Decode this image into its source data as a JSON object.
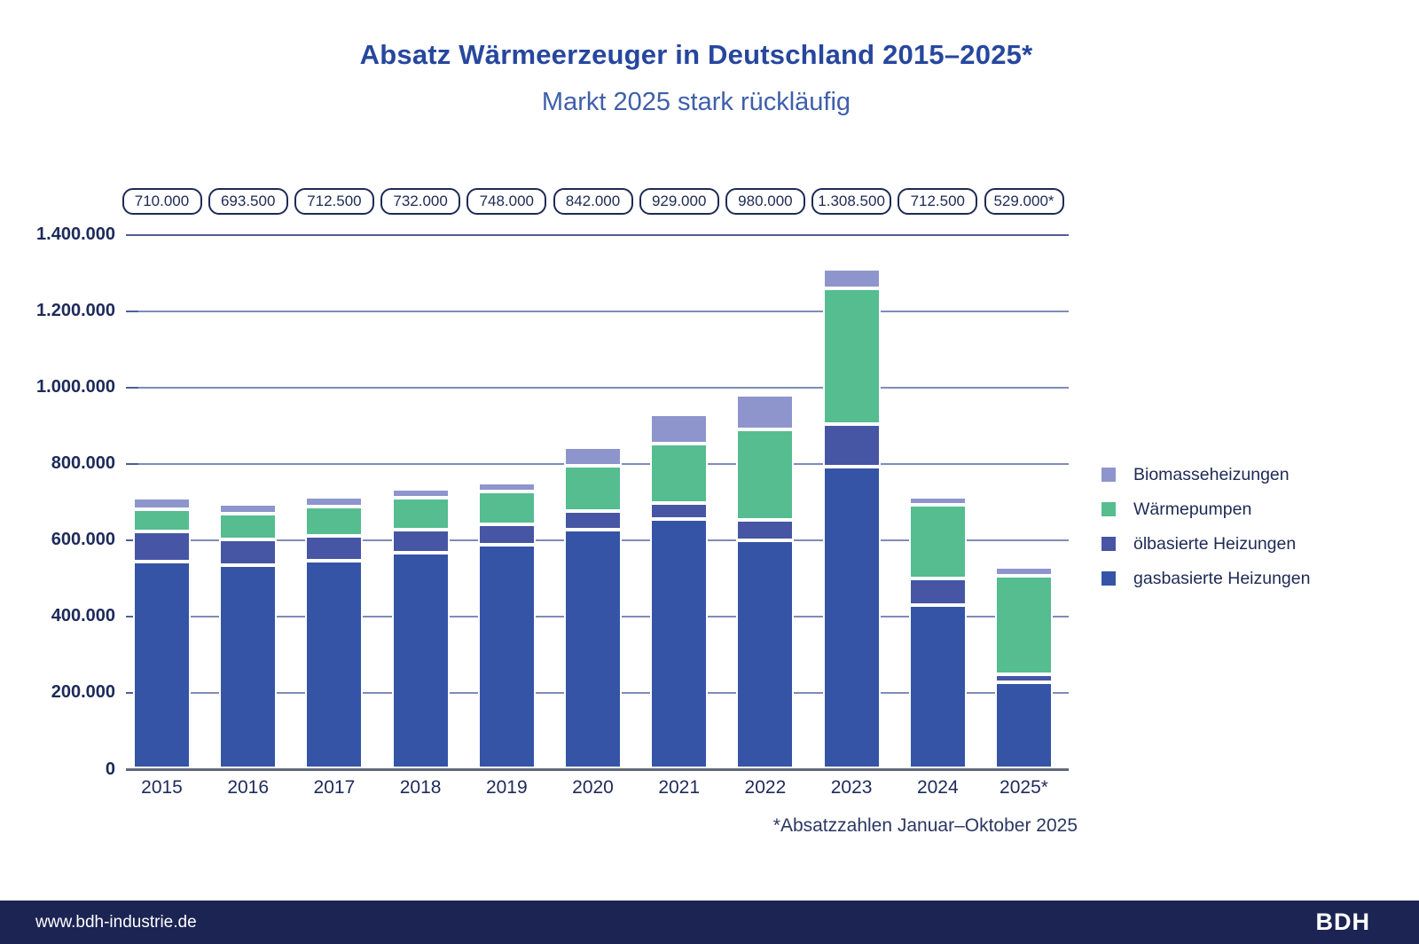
{
  "title": "Absatz Wärmeerzeuger in Deutschland 2015–2025*",
  "subtitle": "Markt 2025 stark rückläufig",
  "footnote": "*Absatzzahlen Januar–Oktober 2025",
  "footer": {
    "url": "www.bdh-industrie.de",
    "logo": "BDH"
  },
  "colors": {
    "title_navy": "#27479e",
    "subtitle_blue": "#3f5fab",
    "axis_text": "#1d2a5a",
    "gridline": "#7e8cba",
    "footer_bg": "#1c2453",
    "pill_border": "#1e2a55"
  },
  "chart_data": {
    "type": "bar",
    "stacked": true,
    "title": "Absatz Wärmeerzeuger in Deutschland 2015–2025*",
    "subtitle": "Markt 2025 stark rückläufig",
    "categories": [
      "2015",
      "2016",
      "2017",
      "2018",
      "2019",
      "2020",
      "2021",
      "2022",
      "2023",
      "2024",
      "2025*"
    ],
    "totals": [
      710000,
      693500,
      712500,
      732000,
      748000,
      842000,
      929000,
      980000,
      1308500,
      712500,
      529000
    ],
    "total_labels": [
      "710.000",
      "693.500",
      "712.500",
      "732.000",
      "748.000",
      "842.000",
      "929.000",
      "980.000",
      "1.308.500",
      "712.500",
      "529.000*"
    ],
    "series": [
      {
        "name": "gasbasierte Heizungen",
        "color": "#3554a6",
        "values": [
          543000,
          532000,
          545000,
          566000,
          587000,
          625000,
          653000,
          598000,
          790500,
          427500,
          225000
        ]
      },
      {
        "name": "ölbasierte Heizungen",
        "color": "#4656a4",
        "values": [
          78500,
          68000,
          63500,
          59500,
          51500,
          48500,
          43500,
          53500,
          112500,
          70500,
          22500
        ]
      },
      {
        "name": "Wärmepumpen",
        "color": "#55bd90",
        "values": [
          57000,
          66500,
          78000,
          84000,
          86000,
          120000,
          154000,
          236000,
          356000,
          193000,
          256000
        ]
      },
      {
        "name": "Biomasseheizungen",
        "color": "#8e95cc",
        "values": [
          31500,
          27000,
          26000,
          22500,
          23500,
          48500,
          78500,
          92500,
          49500,
          21500,
          25500
        ]
      }
    ],
    "legend_order_top_to_bottom": [
      "Biomasseheizungen",
      "Wärmepumpen",
      "ölbasierte Heizungen",
      "gasbasierte Heizungen"
    ],
    "yticks": [
      "0",
      "200.000",
      "400.000",
      "600.000",
      "800.000",
      "1.000.000",
      "1.200.000",
      "1.400.000"
    ],
    "ylim": [
      0,
      1400000
    ],
    "xlabel": "",
    "ylabel": "",
    "grid": true,
    "legend_position": "right"
  }
}
